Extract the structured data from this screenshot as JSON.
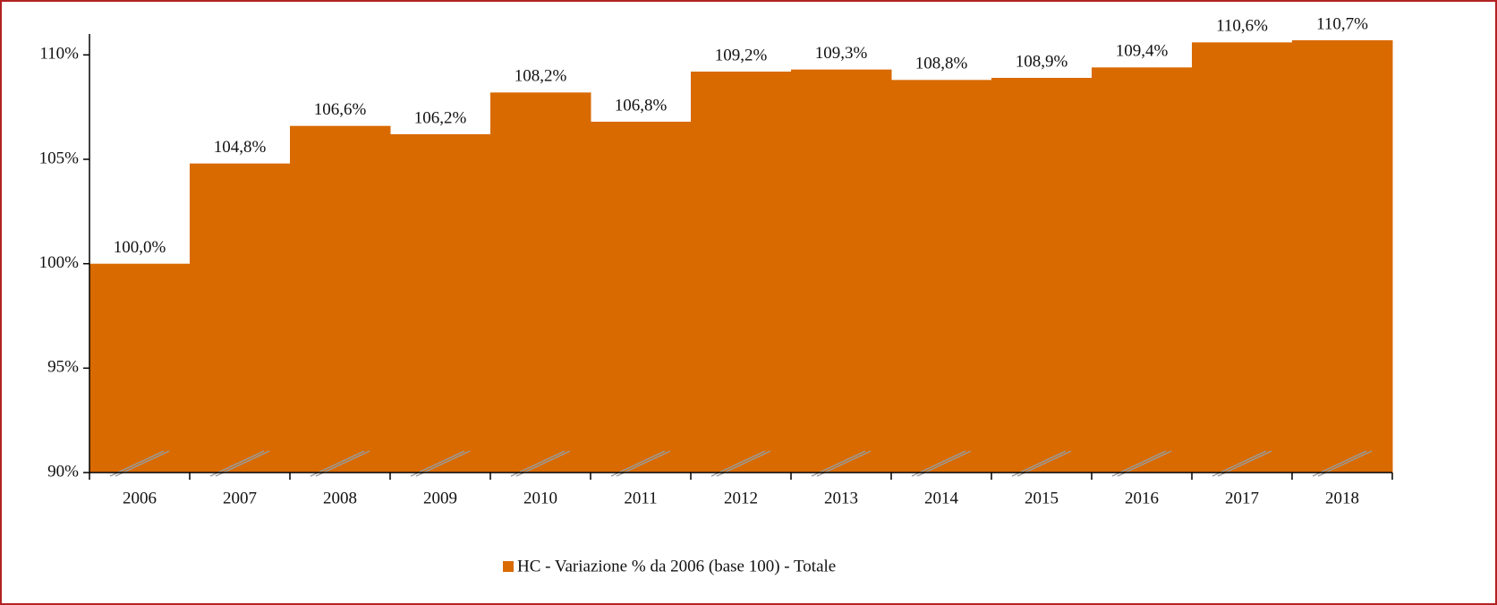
{
  "chart_data": {
    "type": "bar",
    "categories": [
      "2006",
      "2007",
      "2008",
      "2009",
      "2010",
      "2011",
      "2012",
      "2013",
      "2014",
      "2015",
      "2016",
      "2017",
      "2018"
    ],
    "series": [
      {
        "name": "HC - Variazione % da 2006 (base 100) - Totale",
        "color": "#d96a00",
        "values": [
          100.0,
          104.8,
          106.6,
          106.2,
          108.2,
          106.8,
          109.2,
          109.3,
          108.8,
          108.9,
          109.4,
          110.6,
          110.7
        ],
        "value_labels": [
          "100,0%",
          "104,8%",
          "106,6%",
          "106,2%",
          "108,2%",
          "106,8%",
          "109,2%",
          "109,3%",
          "108,8%",
          "108,9%",
          "109,4%",
          "110,6%",
          "110,7%"
        ]
      }
    ],
    "ylim": [
      90,
      111
    ],
    "yticks": [
      {
        "value": 90,
        "label": "90%"
      },
      {
        "value": 95,
        "label": "95%"
      },
      {
        "value": 100,
        "label": "100%"
      },
      {
        "value": 105,
        "label": "105%"
      },
      {
        "value": 110,
        "label": "110%"
      }
    ],
    "legend": "bottom"
  }
}
